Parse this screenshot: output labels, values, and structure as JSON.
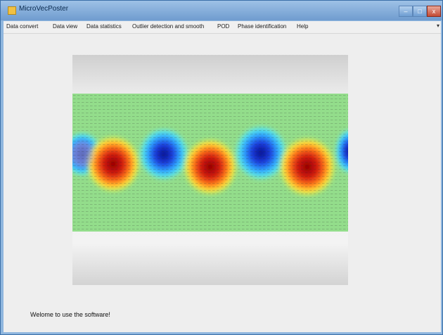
{
  "window": {
    "title": "MicroVecPoster"
  },
  "window_controls": {
    "minimize": "–",
    "maximize": "□",
    "close": "x"
  },
  "menu": {
    "items": [
      "Data convert",
      "Data view",
      "Data statistics",
      "Outlier detection and smooth",
      "POD",
      "Phase identification",
      "Help"
    ],
    "overflow": "▾"
  },
  "main": {
    "status_message": "Welome to use the software!"
  },
  "colors": {
    "title_bar": "#8fb6de",
    "field_background": "#9ee08a",
    "vortex_positive": "#b00000",
    "vortex_negative": "#0a1fa8"
  }
}
